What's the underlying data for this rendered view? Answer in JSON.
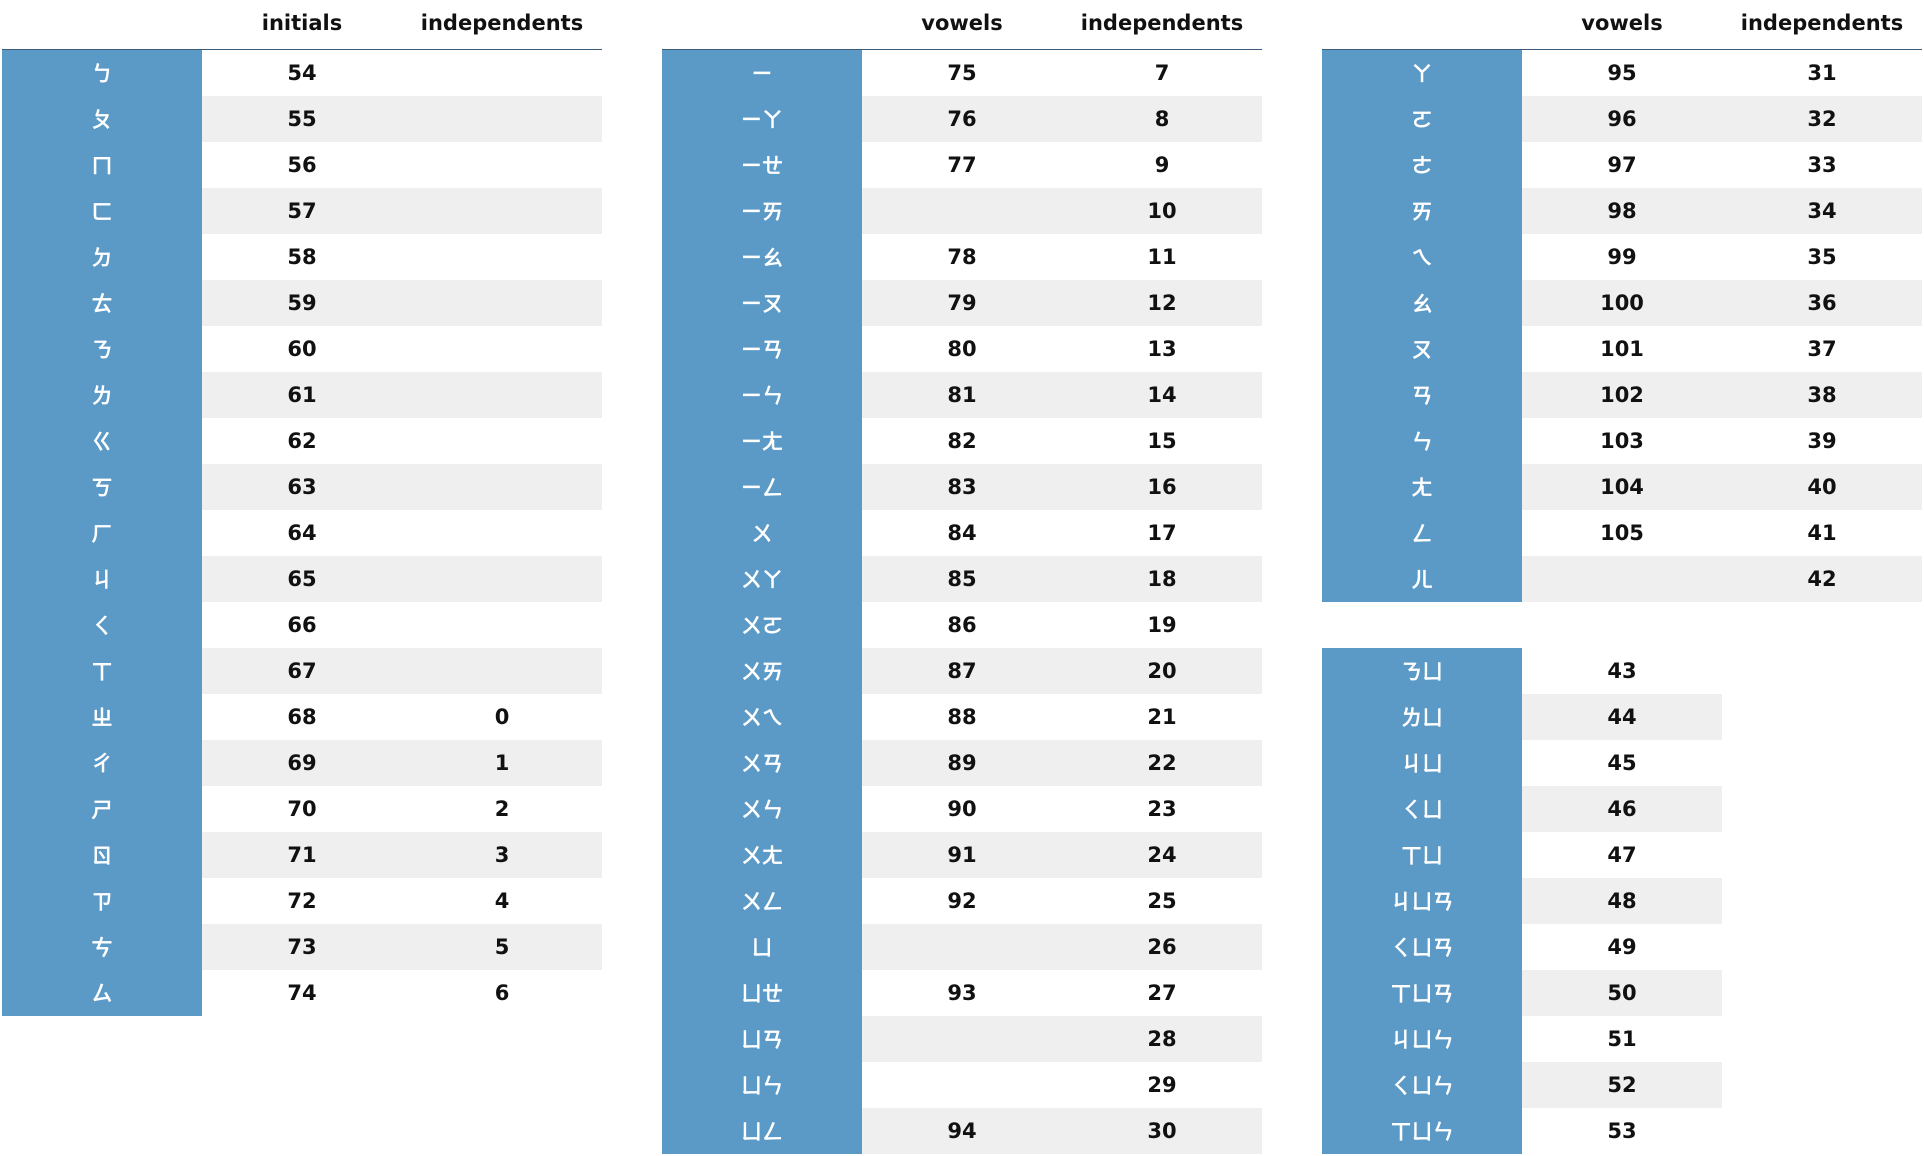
{
  "tables": {
    "initials_table": {
      "headers": [
        "",
        "initials",
        "independents"
      ],
      "rows": [
        [
          "ㄅ",
          "54",
          ""
        ],
        [
          "ㄆ",
          "55",
          ""
        ],
        [
          "ㄇ",
          "56",
          ""
        ],
        [
          "ㄈ",
          "57",
          ""
        ],
        [
          "ㄉ",
          "58",
          ""
        ],
        [
          "ㄊ",
          "59",
          ""
        ],
        [
          "ㄋ",
          "60",
          ""
        ],
        [
          "ㄌ",
          "61",
          ""
        ],
        [
          "ㄍ",
          "62",
          ""
        ],
        [
          "ㄎ",
          "63",
          ""
        ],
        [
          "ㄏ",
          "64",
          ""
        ],
        [
          "ㄐ",
          "65",
          ""
        ],
        [
          "ㄑ",
          "66",
          ""
        ],
        [
          "ㄒ",
          "67",
          ""
        ],
        [
          "ㄓ",
          "68",
          "0"
        ],
        [
          "ㄔ",
          "69",
          "1"
        ],
        [
          "ㄕ",
          "70",
          "2"
        ],
        [
          "ㄖ",
          "71",
          "3"
        ],
        [
          "ㄗ",
          "72",
          "4"
        ],
        [
          "ㄘ",
          "73",
          "5"
        ],
        [
          "ㄙ",
          "74",
          "6"
        ]
      ]
    },
    "medials_table": {
      "headers": [
        "",
        "vowels",
        "independents"
      ],
      "rows": [
        [
          "ㄧ",
          "75",
          "7"
        ],
        [
          "ㄧㄚ",
          "76",
          "8"
        ],
        [
          "ㄧㄝ",
          "77",
          "9"
        ],
        [
          "ㄧㄞ",
          "",
          "10"
        ],
        [
          "ㄧㄠ",
          "78",
          "11"
        ],
        [
          "ㄧㄡ",
          "79",
          "12"
        ],
        [
          "ㄧㄢ",
          "80",
          "13"
        ],
        [
          "ㄧㄣ",
          "81",
          "14"
        ],
        [
          "ㄧㄤ",
          "82",
          "15"
        ],
        [
          "ㄧㄥ",
          "83",
          "16"
        ],
        [
          "ㄨ",
          "84",
          "17"
        ],
        [
          "ㄨㄚ",
          "85",
          "18"
        ],
        [
          "ㄨㄛ",
          "86",
          "19"
        ],
        [
          "ㄨㄞ",
          "87",
          "20"
        ],
        [
          "ㄨㄟ",
          "88",
          "21"
        ],
        [
          "ㄨㄢ",
          "89",
          "22"
        ],
        [
          "ㄨㄣ",
          "90",
          "23"
        ],
        [
          "ㄨㄤ",
          "91",
          "24"
        ],
        [
          "ㄨㄥ",
          "92",
          "25"
        ],
        [
          "ㄩ",
          "",
          "26"
        ],
        [
          "ㄩㄝ",
          "93",
          "27"
        ],
        [
          "ㄩㄢ",
          "",
          "28"
        ],
        [
          "ㄩㄣ",
          "",
          "29"
        ],
        [
          "ㄩㄥ",
          "94",
          "30"
        ]
      ]
    },
    "finals_table": {
      "headers": [
        "",
        "vowels",
        "independents"
      ],
      "rows": [
        [
          "ㄚ",
          "95",
          "31"
        ],
        [
          "ㄛ",
          "96",
          "32"
        ],
        [
          "ㄜ",
          "97",
          "33"
        ],
        [
          "ㄞ",
          "98",
          "34"
        ],
        [
          "ㄟ",
          "99",
          "35"
        ],
        [
          "ㄠ",
          "100",
          "36"
        ],
        [
          "ㄡ",
          "101",
          "37"
        ],
        [
          "ㄢ",
          "102",
          "38"
        ],
        [
          "ㄣ",
          "103",
          "39"
        ],
        [
          "ㄤ",
          "104",
          "40"
        ],
        [
          "ㄥ",
          "105",
          "41"
        ],
        [
          "ㄦ",
          "",
          "42"
        ]
      ]
    },
    "combos_table": {
      "rows": [
        [
          "ㄋㄩ",
          "43"
        ],
        [
          "ㄌㄩ",
          "44"
        ],
        [
          "ㄐㄩ",
          "45"
        ],
        [
          "ㄑㄩ",
          "46"
        ],
        [
          "ㄒㄩ",
          "47"
        ],
        [
          "ㄐㄩㄢ",
          "48"
        ],
        [
          "ㄑㄩㄢ",
          "49"
        ],
        [
          "ㄒㄩㄢ",
          "50"
        ],
        [
          "ㄐㄩㄣ",
          "51"
        ],
        [
          "ㄑㄩㄣ",
          "52"
        ],
        [
          "ㄒㄩㄣ",
          "53"
        ]
      ]
    }
  },
  "colors": {
    "symbol_bg": "#5b99c6",
    "alt_row": "#efefef",
    "header_rule": "#3c5a7a"
  }
}
